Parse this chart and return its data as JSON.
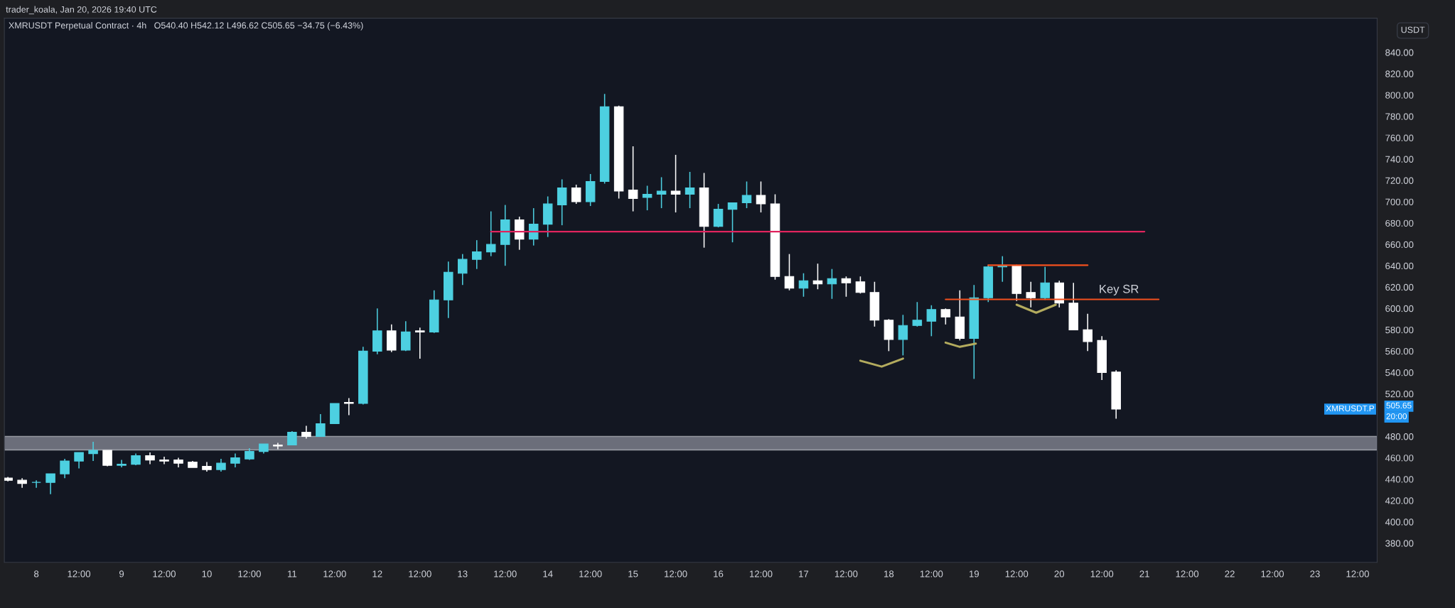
{
  "chart_data": {
    "type": "candlestick",
    "title": "XMRUSDT Perpetual Contract · 4h",
    "subtitle": "O540.40 H542.12 L496.62 C505.65 −34.75 (−6.43%)",
    "ylabel": "USDT",
    "x": [
      "2026-01-07T16:00",
      "2026-01-07T20:00",
      "2026-01-08T00:00",
      "2026-01-08T04:00",
      "2026-01-08T08:00",
      "2026-01-08T12:00",
      "2026-01-08T16:00",
      "2026-01-08T20:00",
      "2026-01-09T00:00",
      "2026-01-09T04:00",
      "2026-01-09T08:00",
      "2026-01-09T12:00",
      "2026-01-09T16:00",
      "2026-01-09T20:00",
      "2026-01-10T00:00",
      "2026-01-10T04:00",
      "2026-01-10T08:00",
      "2026-01-10T12:00",
      "2026-01-10T16:00",
      "2026-01-10T20:00",
      "2026-01-11T00:00",
      "2026-01-11T04:00",
      "2026-01-11T08:00",
      "2026-01-11T12:00",
      "2026-01-11T16:00",
      "2026-01-11T20:00",
      "2026-01-12T00:00",
      "2026-01-12T04:00",
      "2026-01-12T08:00",
      "2026-01-12T12:00",
      "2026-01-12T16:00",
      "2026-01-12T20:00",
      "2026-01-13T00:00",
      "2026-01-13T04:00",
      "2026-01-13T08:00",
      "2026-01-13T12:00",
      "2026-01-13T16:00",
      "2026-01-13T20:00",
      "2026-01-14T00:00",
      "2026-01-14T04:00",
      "2026-01-14T08:00",
      "2026-01-14T12:00",
      "2026-01-14T16:00",
      "2026-01-14T20:00",
      "2026-01-15T00:00",
      "2026-01-15T04:00",
      "2026-01-15T08:00",
      "2026-01-15T12:00",
      "2026-01-15T16:00",
      "2026-01-15T20:00",
      "2026-01-16T00:00",
      "2026-01-16T04:00",
      "2026-01-16T08:00",
      "2026-01-16T12:00",
      "2026-01-16T16:00",
      "2026-01-16T20:00",
      "2026-01-17T00:00",
      "2026-01-17T04:00",
      "2026-01-17T08:00",
      "2026-01-17T12:00",
      "2026-01-17T16:00",
      "2026-01-17T20:00",
      "2026-01-18T00:00",
      "2026-01-18T04:00",
      "2026-01-18T08:00",
      "2026-01-18T12:00",
      "2026-01-18T16:00",
      "2026-01-18T20:00",
      "2026-01-19T00:00",
      "2026-01-19T04:00",
      "2026-01-19T08:00",
      "2026-01-19T12:00",
      "2026-01-19T16:00",
      "2026-01-19T20:00",
      "2026-01-20T00:00",
      "2026-01-20T04:00",
      "2026-01-20T08:00",
      "2026-01-20T12:00",
      "2026-01-20T16:00"
    ],
    "ohlc": [
      [
        441,
        442,
        438,
        439
      ],
      [
        439,
        441,
        432,
        436
      ],
      [
        437,
        439,
        432,
        437
      ],
      [
        437,
        445,
        426,
        445
      ],
      [
        445,
        459,
        441,
        457
      ],
      [
        457,
        465,
        450,
        465
      ],
      [
        464,
        475,
        457,
        467
      ],
      [
        467,
        467,
        452,
        453
      ],
      [
        453,
        458,
        451,
        454
      ],
      [
        454,
        464,
        453,
        462
      ],
      [
        462,
        465,
        454,
        458
      ],
      [
        458,
        461,
        454,
        457
      ],
      [
        458,
        460,
        451,
        455
      ],
      [
        456,
        457,
        451,
        451
      ],
      [
        452,
        456,
        447,
        449
      ],
      [
        449,
        459,
        447,
        455
      ],
      [
        455,
        464,
        451,
        460
      ],
      [
        459,
        469,
        458,
        466
      ],
      [
        466,
        473,
        464,
        473
      ],
      [
        472,
        474,
        468,
        471
      ],
      [
        472,
        485,
        472,
        484
      ],
      [
        484,
        490,
        478,
        480
      ],
      [
        480,
        501,
        480,
        492
      ],
      [
        492,
        511,
        492,
        511
      ],
      [
        512,
        516,
        500,
        511
      ],
      [
        511,
        564,
        510,
        560
      ],
      [
        560,
        600,
        557,
        579
      ],
      [
        579,
        585,
        559,
        561
      ],
      [
        561,
        588,
        560,
        578
      ],
      [
        579,
        582,
        553,
        578
      ],
      [
        578,
        617,
        577,
        608
      ],
      [
        608,
        644,
        591,
        634
      ],
      [
        633,
        651,
        622,
        646
      ],
      [
        646,
        664,
        637,
        653
      ],
      [
        653,
        691,
        649,
        660
      ],
      [
        660,
        697,
        640,
        683
      ],
      [
        683,
        686,
        655,
        665
      ],
      [
        665,
        694,
        659,
        679
      ],
      [
        679,
        705,
        667,
        698
      ],
      [
        697,
        721,
        678,
        713
      ],
      [
        713,
        716,
        698,
        700
      ],
      [
        700,
        726,
        696,
        719
      ],
      [
        719,
        801,
        717,
        789
      ],
      [
        789,
        790,
        703,
        710
      ],
      [
        711,
        752,
        691,
        703
      ],
      [
        704,
        715,
        692,
        707
      ],
      [
        707,
        723,
        694,
        710
      ],
      [
        710,
        744,
        690,
        707
      ],
      [
        707,
        728,
        694,
        713
      ],
      [
        713,
        727,
        657,
        677
      ],
      [
        677,
        698,
        676,
        693
      ],
      [
        693,
        699,
        662,
        699
      ],
      [
        699,
        719,
        694,
        706
      ],
      [
        706,
        719,
        690,
        698
      ],
      [
        698,
        707,
        627,
        630
      ],
      [
        630,
        651,
        617,
        619
      ],
      [
        619,
        633,
        611,
        626
      ],
      [
        626,
        642,
        618,
        623
      ],
      [
        623,
        637,
        609,
        628
      ],
      [
        628,
        630,
        611,
        624
      ],
      [
        625,
        630,
        614,
        615
      ],
      [
        615,
        625,
        583,
        589
      ],
      [
        589,
        590,
        560,
        571
      ],
      [
        571,
        594,
        556,
        584
      ],
      [
        584,
        606,
        583,
        589
      ],
      [
        588,
        603,
        574,
        599
      ],
      [
        599,
        600,
        585,
        592
      ],
      [
        592,
        617,
        570,
        572
      ],
      [
        572,
        622,
        534,
        610
      ],
      [
        610,
        641,
        606,
        639
      ],
      [
        639,
        649,
        625,
        640
      ],
      [
        640,
        641,
        607,
        614
      ],
      [
        615,
        625,
        601,
        610
      ],
      [
        610,
        639,
        608,
        624
      ],
      [
        624,
        626,
        601,
        605
      ],
      [
        605,
        624,
        580,
        580
      ],
      [
        580,
        595,
        560,
        569
      ],
      [
        570,
        574,
        533,
        540
      ],
      [
        540.4,
        542.12,
        496.62,
        505.65
      ]
    ],
    "colors": [
      "#ffffff",
      "#ffffff",
      "#4dd0e1",
      "#4dd0e1",
      "#4dd0e1",
      "#4dd0e1",
      "#4dd0e1",
      "#ffffff",
      "#4dd0e1",
      "#4dd0e1",
      "#ffffff",
      "#ffffff",
      "#ffffff",
      "#ffffff",
      "#ffffff",
      "#4dd0e1",
      "#4dd0e1",
      "#4dd0e1",
      "#4dd0e1",
      "#ffffff",
      "#4dd0e1",
      "#ffffff",
      "#4dd0e1",
      "#4dd0e1",
      "#ffffff",
      "#4dd0e1",
      "#4dd0e1",
      "#ffffff",
      "#4dd0e1",
      "#ffffff",
      "#4dd0e1",
      "#4dd0e1",
      "#4dd0e1",
      "#4dd0e1",
      "#4dd0e1",
      "#4dd0e1",
      "#ffffff",
      "#4dd0e1",
      "#4dd0e1",
      "#4dd0e1",
      "#ffffff",
      "#4dd0e1",
      "#4dd0e1",
      "#ffffff",
      "#ffffff",
      "#4dd0e1",
      "#4dd0e1",
      "#ffffff",
      "#4dd0e1",
      "#ffffff",
      "#4dd0e1",
      "#4dd0e1",
      "#4dd0e1",
      "#ffffff",
      "#ffffff",
      "#ffffff",
      "#4dd0e1",
      "#ffffff",
      "#4dd0e1",
      "#ffffff",
      "#ffffff",
      "#ffffff",
      "#ffffff",
      "#4dd0e1",
      "#4dd0e1",
      "#4dd0e1",
      "#ffffff",
      "#ffffff",
      "#4dd0e1",
      "#4dd0e1",
      "#4dd0e1",
      "#ffffff",
      "#ffffff",
      "#4dd0e1",
      "#ffffff",
      "#ffffff",
      "#ffffff",
      "#ffffff",
      "#ffffff"
    ],
    "series": [
      {
        "type": "line",
        "color": "#e0245e",
        "x": [
          "2026-01-13T08:00",
          "2026-01-21T00:00"
        ],
        "values": [
          672,
          672
        ]
      },
      {
        "type": "line",
        "color": "#f4511e",
        "x": [
          "2026-01-19T04:00",
          "2026-01-20T08:00"
        ],
        "values": [
          640.5,
          640.5
        ]
      },
      {
        "type": "line",
        "name": "Key SR",
        "color": "#f4511e",
        "x": [
          "2026-01-18T16:00",
          "2026-01-21T04:00"
        ],
        "values": [
          608.5,
          608.5
        ]
      },
      {
        "type": "line",
        "color": "#b3ab5e",
        "x": [
          "2026-01-17T16:00",
          "2026-01-17T22:00",
          "2026-01-18T04:00"
        ],
        "values": [
          551,
          545.5,
          553
        ]
      },
      {
        "type": "line",
        "color": "#b3ab5e",
        "x": [
          "2026-01-18T16:00",
          "2026-01-18T20:00",
          "2026-01-19T00:30"
        ],
        "values": [
          568,
          564,
          567
        ]
      },
      {
        "type": "line",
        "color": "#b3ab5e",
        "x": [
          "2026-01-19T12:00",
          "2026-01-19T17:30",
          "2026-01-19T23:00"
        ],
        "values": [
          603.5,
          596,
          603.5
        ]
      }
    ],
    "bands": [
      {
        "axis": "y",
        "from": 467.5,
        "to": 480,
        "color": "#6b6e7a"
      }
    ],
    "annotations": [
      "trader_koala, Jan 20, 2026 19:40 UTC",
      "XMRUSDT.P",
      "505.65",
      "20:00"
    ],
    "xlim": [
      "2026-01-07T15:00",
      "2026-01-23T17:30"
    ],
    "xticks": [
      {
        "value": "2026-01-08",
        "label": "8"
      },
      {
        "value": "2026-01-08T12:00",
        "label": "12:00"
      },
      {
        "value": "2026-01-09",
        "label": "9"
      },
      {
        "value": "2026-01-09T12:00",
        "label": "12:00"
      },
      {
        "value": "2026-01-10",
        "label": "10"
      },
      {
        "value": "2026-01-10T12:00",
        "label": "12:00"
      },
      {
        "value": "2026-01-11",
        "label": "11"
      },
      {
        "value": "2026-01-11T12:00",
        "label": "12:00"
      },
      {
        "value": "2026-01-12",
        "label": "12"
      },
      {
        "value": "2026-01-12T12:00",
        "label": "12:00"
      },
      {
        "value": "2026-01-13",
        "label": "13"
      },
      {
        "value": "2026-01-13T12:00",
        "label": "12:00"
      },
      {
        "value": "2026-01-14",
        "label": "14"
      },
      {
        "value": "2026-01-14T12:00",
        "label": "12:00"
      },
      {
        "value": "2026-01-15",
        "label": "15"
      },
      {
        "value": "2026-01-15T12:00",
        "label": "12:00"
      },
      {
        "value": "2026-01-16",
        "label": "16"
      },
      {
        "value": "2026-01-16T12:00",
        "label": "12:00"
      },
      {
        "value": "2026-01-17",
        "label": "17"
      },
      {
        "value": "2026-01-17T12:00",
        "label": "12:00"
      },
      {
        "value": "2026-01-18",
        "label": "18"
      },
      {
        "value": "2026-01-18T12:00",
        "label": "12:00"
      },
      {
        "value": "2026-01-19",
        "label": "19"
      },
      {
        "value": "2026-01-19T12:00",
        "label": "12:00"
      },
      {
        "value": "2026-01-20",
        "label": "20"
      },
      {
        "value": "2026-01-20T12:00",
        "label": "12:00"
      },
      {
        "value": "2026-01-21",
        "label": "21"
      },
      {
        "value": "2026-01-21T12:00",
        "label": "12:00"
      },
      {
        "value": "2026-01-22",
        "label": "22"
      },
      {
        "value": "2026-01-22T12:00",
        "label": "12:00"
      },
      {
        "value": "2026-01-23",
        "label": "23"
      },
      {
        "value": "2026-01-23T12:00",
        "label": "12:00"
      }
    ],
    "ylim": [
      362,
      872
    ],
    "yticks": [
      {
        "value": 380,
        "label": "380.00"
      },
      {
        "value": 400,
        "label": "400.00"
      },
      {
        "value": 420,
        "label": "420.00"
      },
      {
        "value": 440,
        "label": "440.00"
      },
      {
        "value": 460,
        "label": "460.00"
      },
      {
        "value": 480,
        "label": "480.00"
      },
      {
        "value": 520,
        "label": "520.00"
      },
      {
        "value": 540,
        "label": "540.00"
      },
      {
        "value": 560,
        "label": "560.00"
      },
      {
        "value": 580,
        "label": "580.00"
      },
      {
        "value": 600,
        "label": "600.00"
      },
      {
        "value": 620,
        "label": "620.00"
      },
      {
        "value": 640,
        "label": "640.00"
      },
      {
        "value": 660,
        "label": "660.00"
      },
      {
        "value": 680,
        "label": "680.00"
      },
      {
        "value": 700,
        "label": "700.00"
      },
      {
        "value": 720,
        "label": "720.00"
      },
      {
        "value": 740,
        "label": "740.00"
      },
      {
        "value": 760,
        "label": "760.00"
      },
      {
        "value": 780,
        "label": "780.00"
      },
      {
        "value": 800,
        "label": "800.00"
      },
      {
        "value": 820,
        "label": "820.00"
      },
      {
        "value": 840,
        "label": "840.00"
      }
    ]
  }
}
